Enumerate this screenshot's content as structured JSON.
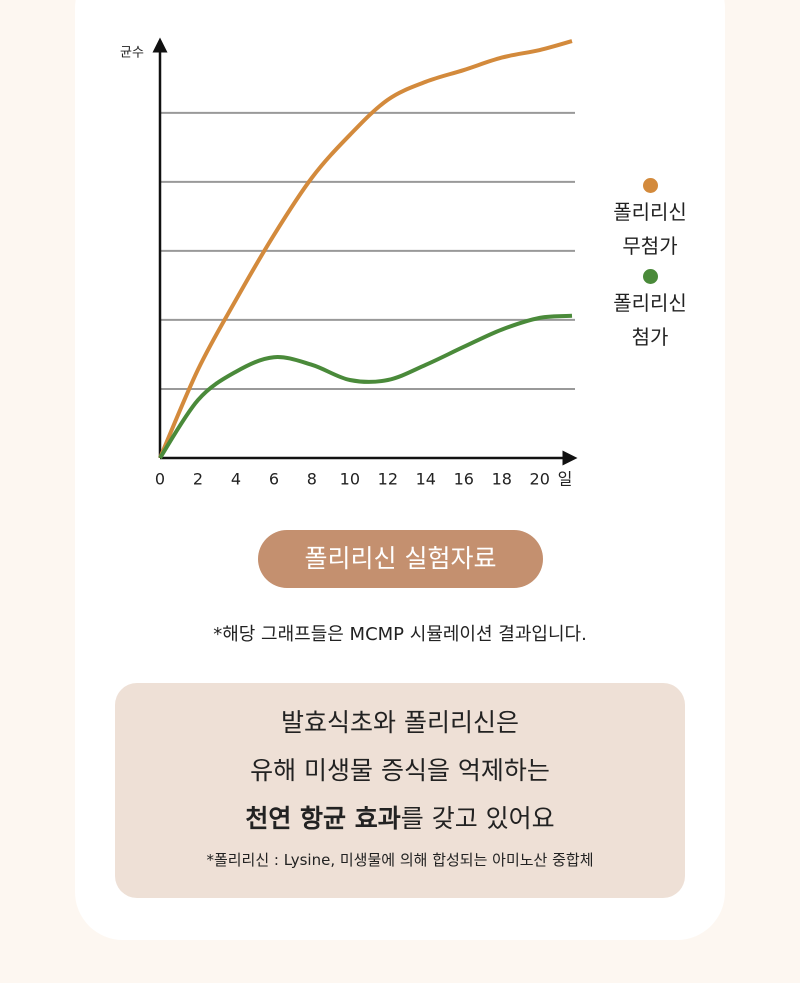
{
  "chart_data": {
    "type": "line",
    "y_label": "균수",
    "x_label": "일",
    "x": [
      0,
      2,
      4,
      6,
      8,
      10,
      12,
      14,
      16,
      18,
      20,
      21.7
    ],
    "series": [
      {
        "name": "폴리리신 무첨가",
        "color": "#d38a3c",
        "values": [
          0,
          1.28,
          2.29,
          3.23,
          4.06,
          4.68,
          5.19,
          5.45,
          5.62,
          5.8,
          5.91,
          6.04
        ]
      },
      {
        "name": "폴리리신 첨가",
        "color": "#4a8a3a",
        "values": [
          0,
          0.84,
          1.25,
          1.46,
          1.35,
          1.13,
          1.13,
          1.35,
          1.61,
          1.86,
          2.03,
          2.06
        ]
      }
    ],
    "xlim": [
      0,
      21.7
    ],
    "ylim": [
      0,
      6.2
    ],
    "xticks": [
      0,
      2,
      4,
      6,
      8,
      10,
      12,
      14,
      16,
      18,
      20
    ],
    "y_gridlines": [
      1,
      2,
      3,
      4,
      5
    ],
    "grid": true,
    "legend": "right"
  },
  "badge": "폴리리신 실험자료",
  "note": "*해당 그래프들은 MCMP 시뮬레이션 결과입니다.",
  "box": {
    "line1": "발효식초와 폴리리신은",
    "line2": "유해 미생물 증식을 억제하는",
    "line3_bold": "천연 항균 효과",
    "line3_rest": "를 갖고 있어요",
    "footnote": "*폴리리신 : Lysine, 미생물에 의해 합성되는 아미노산 중합체"
  }
}
